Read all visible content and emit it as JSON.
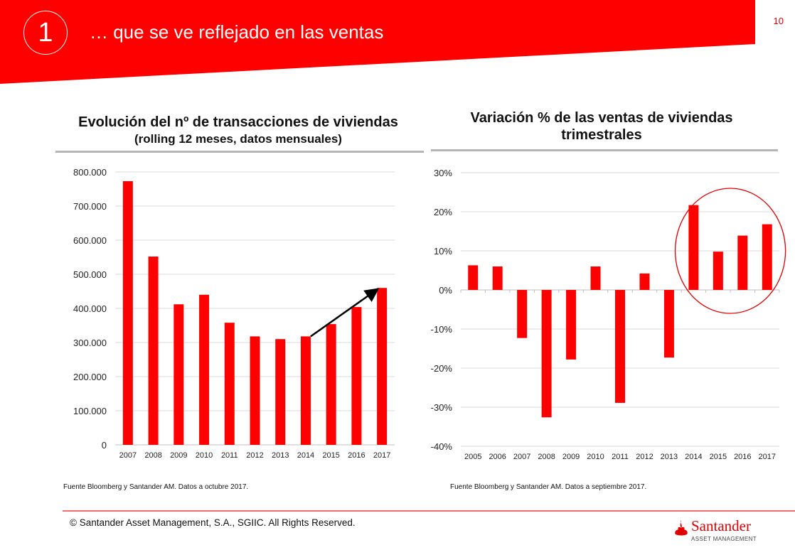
{
  "header": {
    "section_number": "1",
    "title": "… que se ve reflejado en las ventas",
    "page_number": "10",
    "brand_color": "#ff0000"
  },
  "left_chart": {
    "title": "Evolución del nº de transacciones de viviendas",
    "subtitle": "(rolling 12 meses, datos mensuales)",
    "source": "Fuente Bloomberg y  Santander AM. Datos a octubre 2017."
  },
  "right_chart": {
    "title_line1": "Variación % de las ventas de viviendas",
    "title_line2": "trimestrales",
    "source": "Fuente Bloomberg y  Santander AM. Datos a septiembre 2017."
  },
  "footer": {
    "copyright": "© Santander Asset Management, S.A., SGIIC. All Rights Reserved.",
    "logo_name": "Santander",
    "logo_sub": "ASSET MANAGEMENT"
  },
  "chart_data": [
    {
      "type": "bar",
      "title": "Evolución del nº de transacciones de viviendas (rolling 12 meses, datos mensuales)",
      "xlabel": "",
      "ylabel": "",
      "categories": [
        "2007",
        "2008",
        "2009",
        "2010",
        "2011",
        "2012",
        "2013",
        "2014",
        "2015",
        "2016",
        "2017"
      ],
      "values": [
        773000,
        552000,
        412000,
        440000,
        358000,
        318000,
        310000,
        318000,
        354000,
        404000,
        460000
      ],
      "ylim": [
        0,
        800000
      ],
      "yticks": [
        0,
        100000,
        200000,
        300000,
        400000,
        500000,
        600000,
        700000,
        800000
      ],
      "ytick_labels": [
        "0",
        "100.000",
        "200.000",
        "300.000",
        "400.000",
        "500.000",
        "600.000",
        "700.000",
        "800.000"
      ],
      "grid": true,
      "bar_color": "#ff0000",
      "annotations": [
        {
          "type": "arrow",
          "from_category": "2014",
          "to_category": "2017",
          "description": "upward trend arrow"
        }
      ]
    },
    {
      "type": "bar",
      "title": "Variación % de las ventas de viviendas trimestrales",
      "xlabel": "",
      "ylabel": "",
      "categories": [
        "2005",
        "2006",
        "2007",
        "2008",
        "2009",
        "2010",
        "2011",
        "2012",
        "2013",
        "2014",
        "2015",
        "2016",
        "2017"
      ],
      "values": [
        6.3,
        6.0,
        -12.3,
        -32.6,
        -17.8,
        6.0,
        -28.9,
        4.2,
        -17.3,
        21.7,
        9.8,
        13.9,
        16.8
      ],
      "unit": "%",
      "ylim": [
        -40,
        30
      ],
      "yticks": [
        -40,
        -30,
        -20,
        -10,
        0,
        10,
        20,
        30
      ],
      "ytick_labels": [
        "-40%",
        "-30%",
        "-20%",
        "-10%",
        "0%",
        "10%",
        "20%",
        "30%"
      ],
      "grid": true,
      "bar_color": "#ff0000",
      "annotations": [
        {
          "type": "ellipse",
          "from_category": "2014",
          "to_category": "2017",
          "description": "red circle highlighting recent growth"
        }
      ]
    }
  ]
}
